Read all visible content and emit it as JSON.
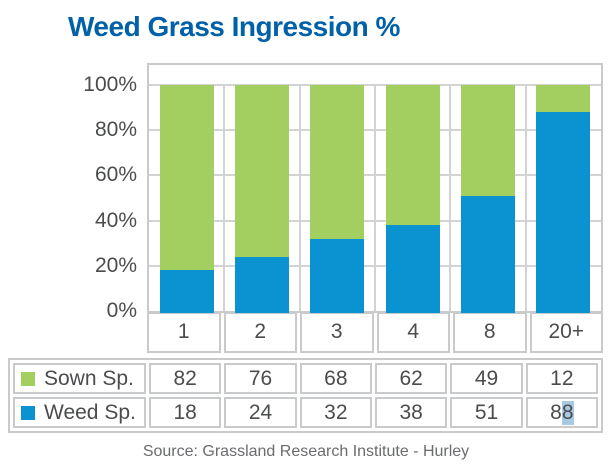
{
  "title": "Weed Grass Ingression %",
  "source_note": "Source: Grassland Research Institute - Hurley",
  "colors": {
    "title_blue": "#0061a8",
    "sown_green": "#a3cf60",
    "weed_blue": "#0a93d0",
    "grid_gray": "#d2d3d5",
    "border_gray": "#c9cacb",
    "label_gray": "#4b4c4e",
    "source_gray": "#6a6b6d",
    "selection_blue": "#a7c9e2"
  },
  "chart_data": {
    "type": "bar",
    "stacked": true,
    "percent_axis": true,
    "title": "Weed Grass Ingression %",
    "categories": [
      "1",
      "2",
      "3",
      "4",
      "8",
      "20+"
    ],
    "series": [
      {
        "name": "Sown Sp.",
        "color_key": "sown_green",
        "values": [
          82,
          76,
          68,
          62,
          49,
          12
        ]
      },
      {
        "name": "Weed Sp.",
        "color_key": "weed_blue",
        "values": [
          18,
          24,
          32,
          38,
          51,
          88
        ]
      }
    ],
    "y_tick_labels": [
      "100%",
      "80%",
      "60%",
      "40%",
      "20%",
      "0%"
    ],
    "ylim": [
      0,
      100
    ],
    "grid": true,
    "legend_position": "table-below"
  },
  "selection": {
    "row_label": "Weed Sp.",
    "category": "20+",
    "selected_suffix": "8"
  }
}
